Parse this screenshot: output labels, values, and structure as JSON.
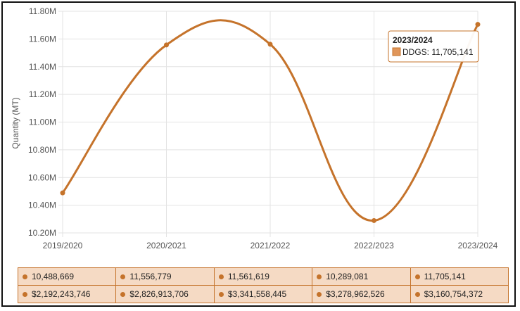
{
  "chart_data": {
    "type": "line",
    "categories": [
      "2019/2020",
      "2020/2021",
      "2021/2022",
      "2022/2023",
      "2023/2024"
    ],
    "series": [
      {
        "name": "DDGS",
        "values": [
          10488669,
          11556779,
          11561619,
          10289081,
          11705141
        ]
      }
    ],
    "ylabel": "Quantity (MT)",
    "ylim": [
      10200000,
      11800000
    ],
    "yticks": [
      10200000,
      10400000,
      10600000,
      10800000,
      11000000,
      11200000,
      11400000,
      11600000,
      11800000
    ],
    "ytick_labels": [
      "10.20M",
      "10.40M",
      "10.60M",
      "10.80M",
      "11.00M",
      "11.20M",
      "11.40M",
      "11.60M",
      "11.80M"
    ],
    "grid": true,
    "color": "#c5732b",
    "tooltip": {
      "title": "2023/2024",
      "text": "DDGS: 11,705,141"
    }
  },
  "table": [
    {
      "quantity": "10,488,669",
      "value": "$2,192,243,746"
    },
    {
      "quantity": "11,556,779",
      "value": "$2,826,913,706"
    },
    {
      "quantity": "11,561,619",
      "value": "$3,341,558,445"
    },
    {
      "quantity": "10,289,081",
      "value": "$3,278,962,526"
    },
    {
      "quantity": "11,705,141",
      "value": "$3,160,754,372"
    }
  ]
}
